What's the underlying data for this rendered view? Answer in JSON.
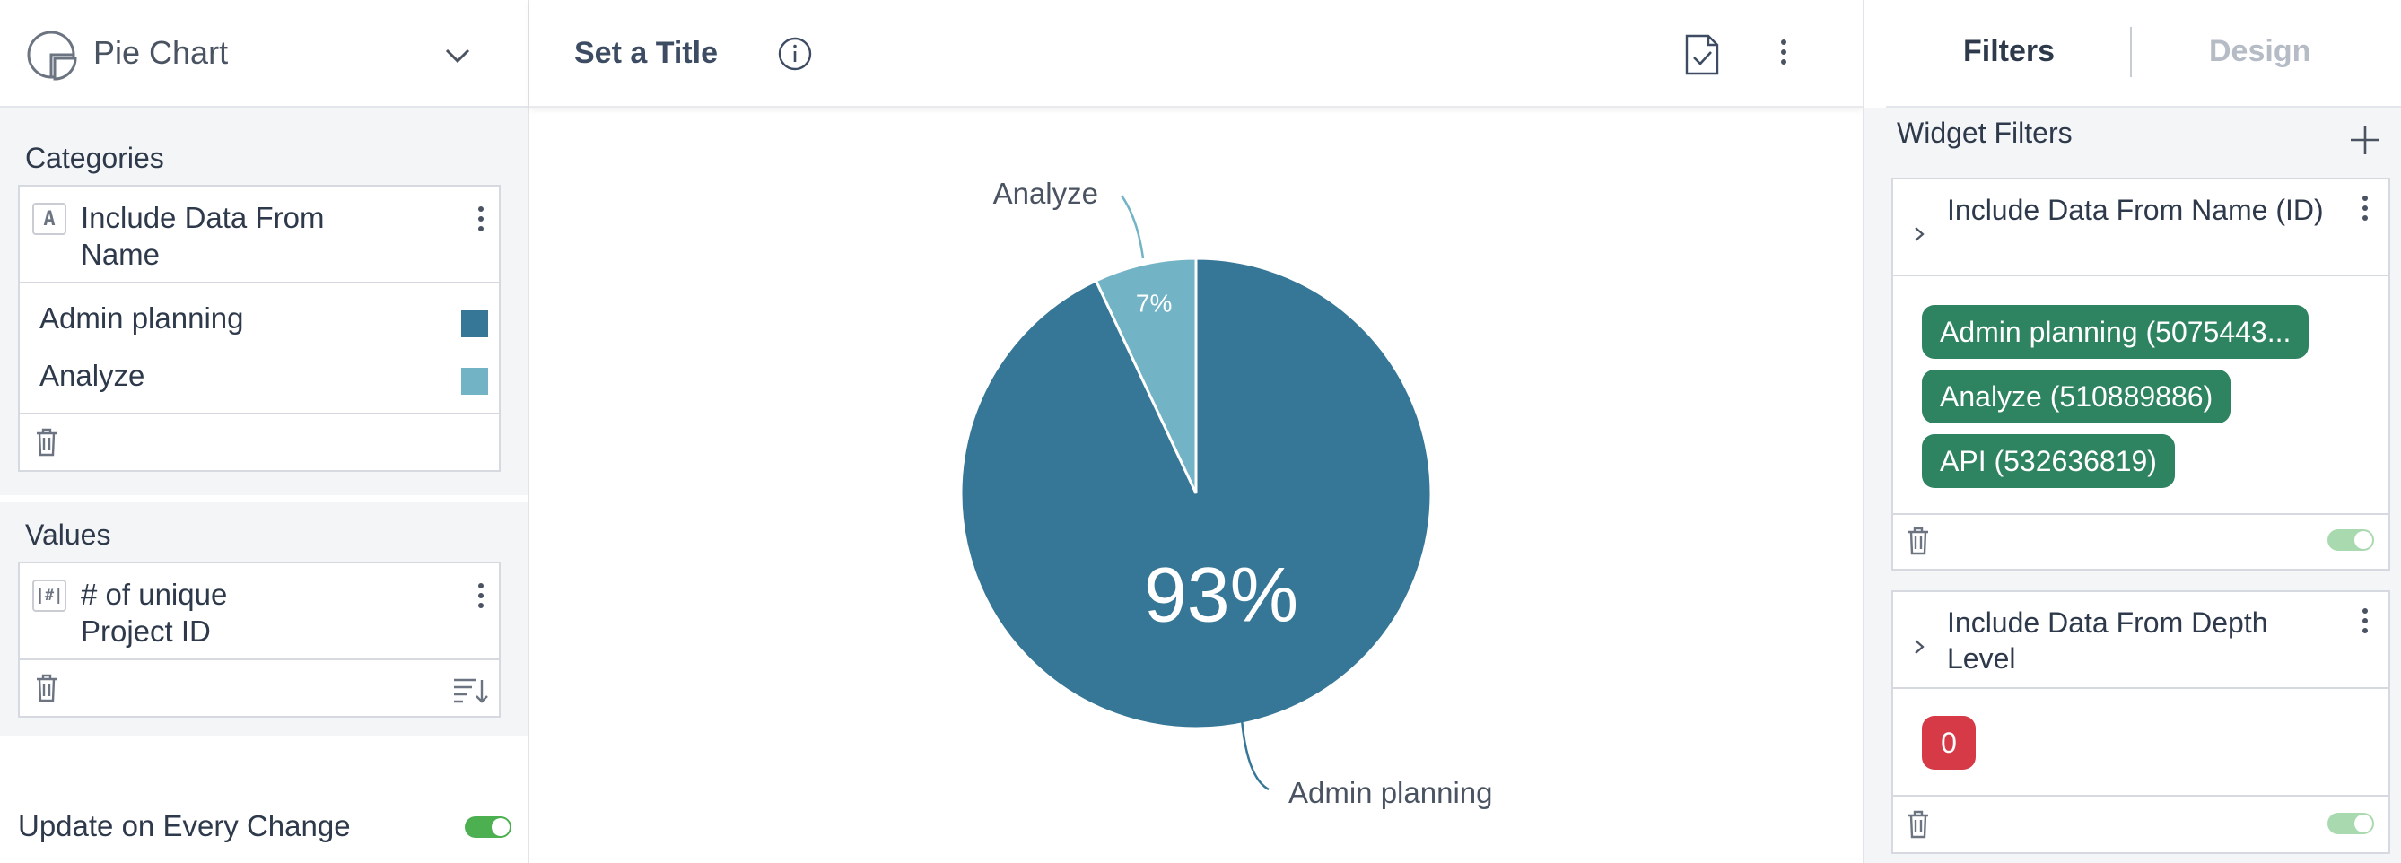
{
  "left_panel": {
    "chart_type_label": "Pie Chart",
    "categories_title": "Categories",
    "category_card": {
      "type_badge": "A",
      "title": "Include Data From Name",
      "items": [
        {
          "label": "Admin planning",
          "color": "#367696"
        },
        {
          "label": "Analyze",
          "color": "#72b3c6"
        }
      ]
    },
    "values_title": "Values",
    "value_card": {
      "type_badge": "|#|",
      "title": "# of unique Project ID"
    },
    "update_label": "Update on Every Change",
    "update_enabled": true
  },
  "center": {
    "title": "Set a Title",
    "icons": [
      "info-icon",
      "save-icon",
      "more-vertical-icon"
    ]
  },
  "right_panel": {
    "tabs": [
      {
        "label": "Filters",
        "active": true
      },
      {
        "label": "Design",
        "active": false
      }
    ],
    "widget_filters_label": "Widget Filters",
    "filters": [
      {
        "title": "Include Data From Name (ID)",
        "pills": [
          "Admin planning (5075443...",
          "Analyze (510889886)",
          "API (532636819)"
        ],
        "enabled": true
      },
      {
        "title": "Include Data From Depth Level",
        "pills": [
          "0"
        ],
        "enabled": true
      }
    ]
  },
  "chart_data": {
    "type": "pie",
    "title": "",
    "slices": [
      {
        "label": "Admin planning",
        "value": 93,
        "display": "93%",
        "color": "#367696"
      },
      {
        "label": "Analyze",
        "value": 7,
        "display": "7%",
        "color": "#72b3c6"
      }
    ]
  }
}
